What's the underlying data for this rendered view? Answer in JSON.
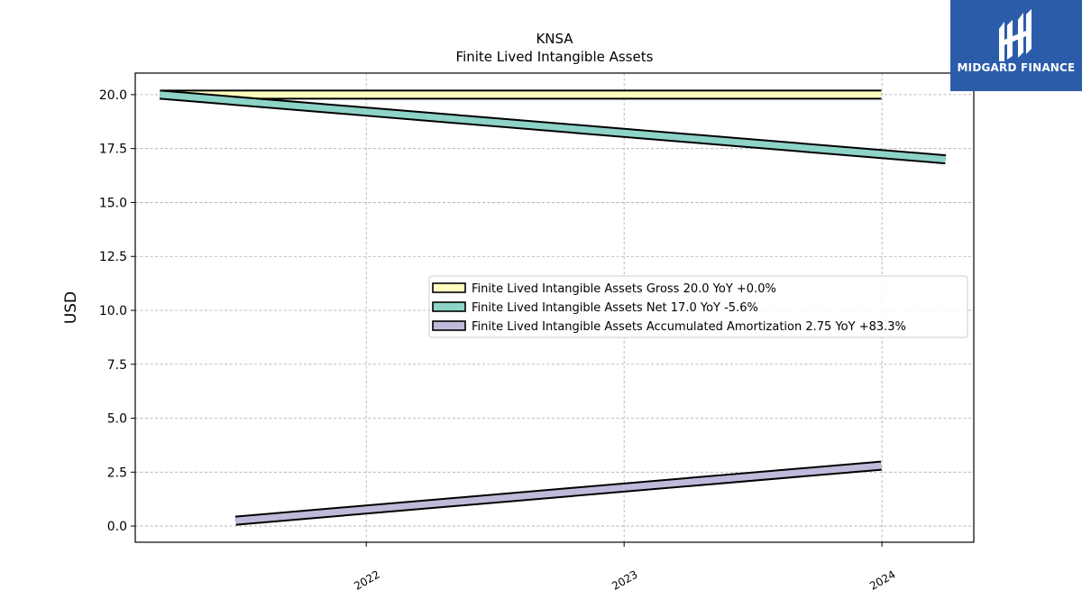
{
  "chart_data": {
    "type": "line",
    "title": "KNSA",
    "subtitle": "Finite Lived Intangible Assets",
    "ylabel": "USD",
    "xlabel": "",
    "xlim": [
      "2021-02-08",
      "2024-05-10"
    ],
    "ylim": [
      -0.75,
      21.0
    ],
    "yticks": [
      "0.0",
      "2.5",
      "5.0",
      "7.5",
      "10.0",
      "12.5",
      "15.0",
      "17.5",
      "20.0"
    ],
    "xticks": [
      "2022",
      "2023",
      "2024"
    ],
    "grid": true,
    "legend_position": "center-right",
    "series": [
      {
        "name": "Finite Lived Intangible Assets Gross  20.0 YoY +0.0%",
        "color": "#ffffbf",
        "points": [
          [
            "2021-03-15",
            20.0
          ],
          [
            "2023-12-31",
            20.0
          ]
        ]
      },
      {
        "name": "Finite Lived Intangible Assets Net  17.0 YoY -5.6%",
        "color": "#8dd3c7",
        "points": [
          [
            "2021-03-15",
            20.0
          ],
          [
            "2024-03-31",
            17.0
          ]
        ]
      },
      {
        "name": "Finite Lived Intangible Assets Accumulated Amortization  2.75 YoY +83.3%",
        "color": "#bebada",
        "points": [
          [
            "2021-06-30",
            0.25
          ],
          [
            "2023-12-31",
            2.8
          ]
        ]
      }
    ]
  },
  "logo": {
    "text": "MIDGARD FINANCE",
    "background": "#2a5caa"
  }
}
